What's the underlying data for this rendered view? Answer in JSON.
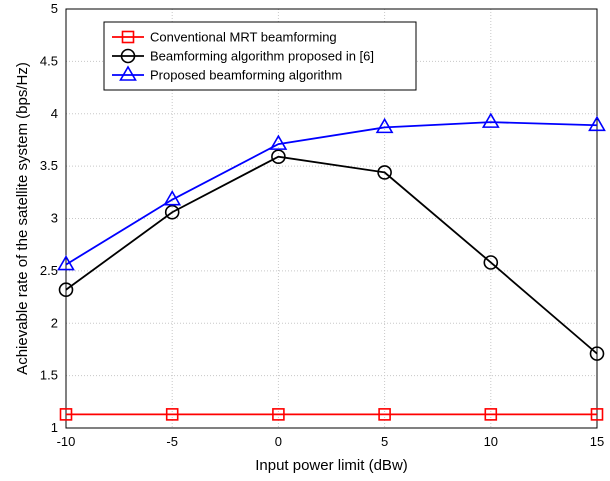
{
  "chart_data": {
    "type": "line",
    "x": [
      -10,
      -5,
      0,
      5,
      10,
      15
    ],
    "xlabel": "Input power limit (dBw)",
    "ylabel": "Achievable rate of the satellite system (bps/Hz)",
    "xlim": [
      -10,
      15
    ],
    "ylim": [
      1,
      5
    ],
    "xticks": [
      "-10",
      "-5",
      "0",
      "5",
      "10",
      "15"
    ],
    "yticks": [
      "1",
      "1.5",
      "2",
      "2.5",
      "3",
      "3.5",
      "4",
      "4.5",
      "5"
    ],
    "grid": true,
    "legend_position": "top-left",
    "series": [
      {
        "name": "Conventional MRT beamforming",
        "color": "#ff0000",
        "marker": "square",
        "values": [
          1.13,
          1.13,
          1.13,
          1.13,
          1.13,
          1.13
        ]
      },
      {
        "name": "Beamforming algorithm proposed in [6]",
        "color": "#000000",
        "marker": "circle",
        "values": [
          2.32,
          3.06,
          3.59,
          3.44,
          2.58,
          1.71
        ]
      },
      {
        "name": "Proposed beamforming algorithm",
        "color": "#0000ff",
        "marker": "triangle",
        "values": [
          2.56,
          3.18,
          3.71,
          3.87,
          3.92,
          3.89
        ]
      }
    ]
  }
}
